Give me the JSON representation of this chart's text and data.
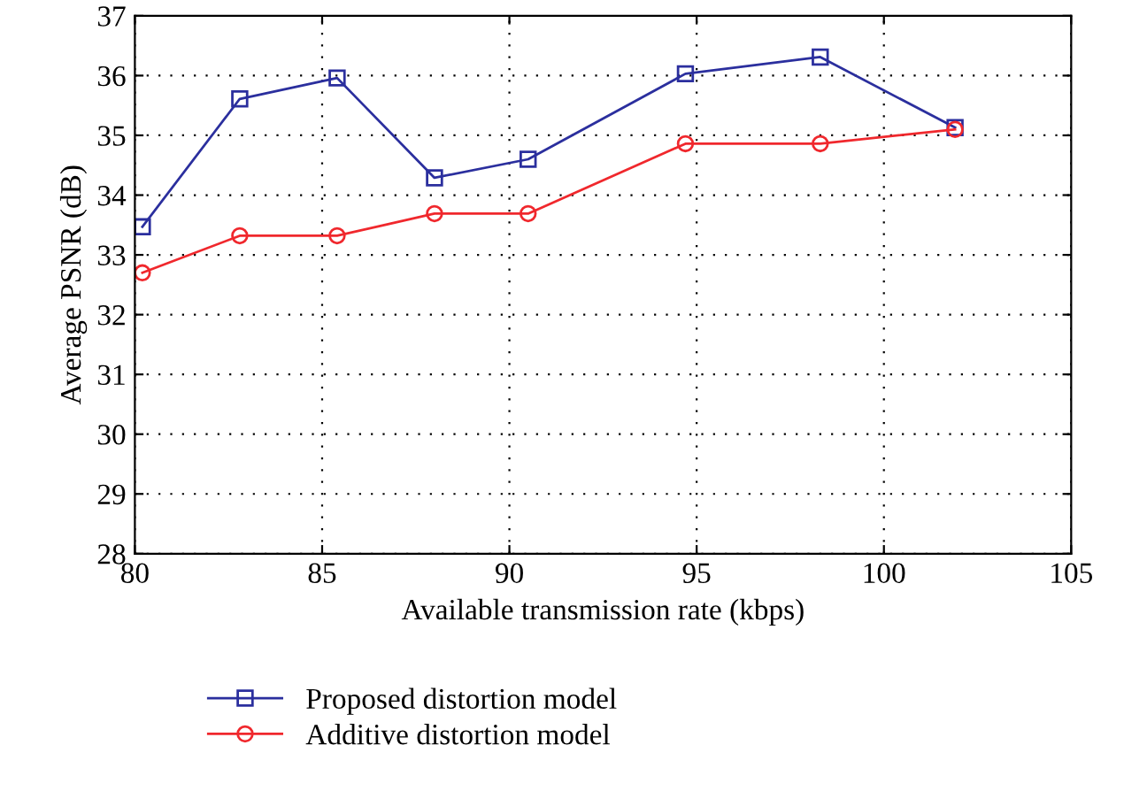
{
  "chart_data": {
    "type": "line",
    "xlabel": "Available transmission rate (kbps)",
    "ylabel": "Average PSNR (dB)",
    "x": [
      80.2,
      82.8,
      85.4,
      88.0,
      90.5,
      94.7,
      98.3,
      101.9
    ],
    "series": [
      {
        "name": "Proposed distortion model",
        "color": "#2b2f9e",
        "marker": "square",
        "values": [
          33.47,
          35.61,
          35.96,
          34.29,
          34.6,
          36.03,
          36.31,
          35.13
        ]
      },
      {
        "name": "Additive distortion model",
        "color": "#f0282d",
        "marker": "circle",
        "values": [
          32.7,
          33.32,
          33.32,
          33.69,
          33.69,
          34.86,
          34.86,
          35.1
        ]
      }
    ],
    "xlim": [
      80,
      105
    ],
    "xticks": [
      80,
      85,
      90,
      95,
      100,
      105
    ],
    "ylim": [
      28,
      37
    ],
    "yticks": [
      28,
      29,
      30,
      31,
      32,
      33,
      34,
      35,
      36,
      37
    ],
    "grid": true,
    "line_style": "solid",
    "legend": "bottom left"
  }
}
